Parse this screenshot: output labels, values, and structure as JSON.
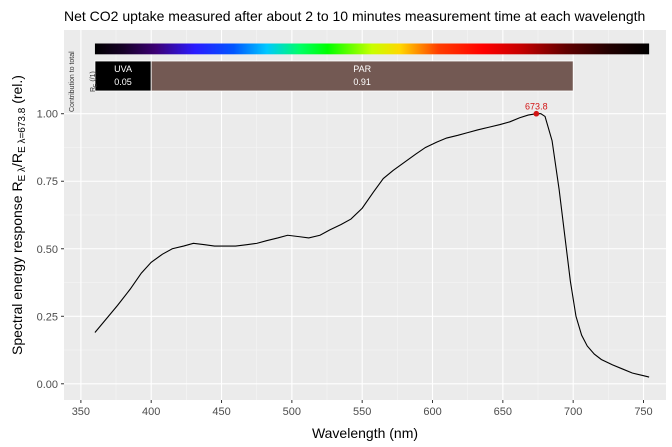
{
  "chart_data": {
    "type": "line",
    "title": "Net CO2 uptake measured after about 2 to 10 minutes measurement time at each wavelength",
    "xlabel": "Wavelength (nm)",
    "ylabel_main": "Spectral  energy  response  R",
    "ylabel_sub1": "E λ",
    "ylabel_mid": "/R",
    "ylabel_sub2": "E λ=673.8",
    "ylabel_unit": "  (rel.)",
    "xlim": [
      338,
      766
    ],
    "ylim": [
      -0.06,
      1.31
    ],
    "x_ticks": [
      350,
      400,
      450,
      500,
      550,
      600,
      650,
      700,
      750
    ],
    "x_tick_labels": [
      "350",
      "400",
      "450",
      "500",
      "550",
      "600",
      "650",
      "700",
      "750"
    ],
    "y_ticks": [
      0,
      0.25,
      0.5,
      0.75,
      1.0
    ],
    "y_tick_labels": [
      "0.00",
      "0.25",
      "0.50",
      "0.75",
      "1.00"
    ],
    "grid": true,
    "series": [
      {
        "color": "#000000",
        "x": [
          360,
          368,
          376,
          385,
          393,
          400,
          408,
          415,
          423,
          430,
          438,
          445,
          452,
          460,
          468,
          475,
          482,
          490,
          497,
          505,
          512,
          520,
          527,
          535,
          542,
          550,
          558,
          565,
          572,
          580,
          588,
          595,
          603,
          610,
          618,
          625,
          632,
          640,
          648,
          655,
          662,
          668,
          673.8,
          677,
          680,
          685,
          690,
          694,
          698,
          702,
          706,
          710,
          715,
          720,
          728,
          735,
          742,
          750,
          754
        ],
        "y": [
          0.19,
          0.24,
          0.29,
          0.35,
          0.41,
          0.45,
          0.48,
          0.5,
          0.51,
          0.52,
          0.515,
          0.51,
          0.51,
          0.51,
          0.515,
          0.52,
          0.53,
          0.54,
          0.55,
          0.545,
          0.54,
          0.55,
          0.57,
          0.59,
          0.61,
          0.65,
          0.71,
          0.76,
          0.79,
          0.82,
          0.85,
          0.875,
          0.895,
          0.91,
          0.92,
          0.93,
          0.94,
          0.95,
          0.96,
          0.97,
          0.985,
          0.995,
          1.0,
          1.0,
          0.99,
          0.9,
          0.72,
          0.55,
          0.38,
          0.25,
          0.18,
          0.14,
          0.11,
          0.09,
          0.07,
          0.055,
          0.04,
          0.03,
          0.025
        ]
      }
    ],
    "annotations": [
      {
        "type": "peak",
        "x": 673.8,
        "y": 1.0,
        "label": "673.8",
        "color": "#d21414"
      },
      {
        "type": "spectrum-bar",
        "x_from": 360,
        "x_to": 754,
        "y_from": 1.22,
        "y_to": 1.26
      },
      {
        "type": "band",
        "x_from": 360,
        "x_to": 400,
        "label": "UVA",
        "value": "0.05",
        "color": "#000000"
      },
      {
        "type": "band",
        "x_from": 400,
        "x_to": 700,
        "label": "PAR",
        "value": "0.91",
        "color": "#735953"
      }
    ],
    "side_label_line1": "Contribution to total",
    "side_label_line2": "R",
    "side_label_line2_sub": "E",
    "side_label_line2_rest": " (/1)"
  }
}
